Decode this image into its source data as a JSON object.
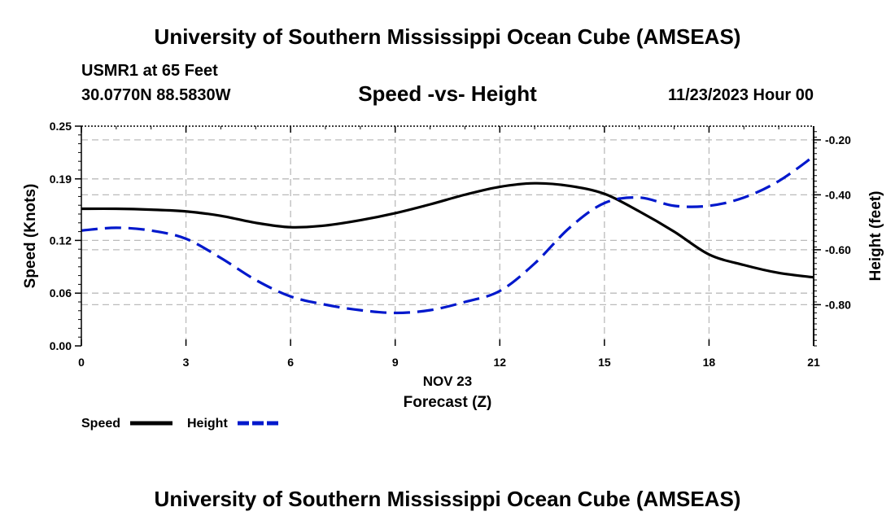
{
  "header": {
    "title": "University of Southern Mississippi Ocean Cube (AMSEAS)",
    "station": "USMR1 at 65 Feet",
    "coords": "30.0770N  88.5830W",
    "datetime": "11/23/2023 Hour 00",
    "footer_title": "University of Southern Mississippi Ocean Cube (AMSEAS)"
  },
  "chart_data": {
    "type": "line",
    "title": "Speed -vs- Height",
    "date_label": "NOV 23",
    "xlabel": "Forecast (Z)",
    "ylabel": "Speed (Knots)",
    "y2label": "Height (feet)",
    "xlim": [
      0,
      21
    ],
    "ylim": [
      0,
      0.25
    ],
    "y2lim": [
      -0.95,
      -0.15
    ],
    "x_ticks": [
      0,
      3,
      6,
      9,
      12,
      15,
      18,
      21
    ],
    "x_tick_labels": [
      "0",
      "3",
      "6",
      "9",
      "12",
      "15",
      "18",
      "21"
    ],
    "y_ticks": [
      0,
      0.06,
      0.12,
      0.19,
      0.25
    ],
    "y_tick_labels": [
      "0.00",
      "0.06",
      "0.12",
      "0.19",
      "0.25"
    ],
    "y2_ticks": [
      -0.2,
      -0.4,
      -0.6,
      -0.8
    ],
    "y2_tick_labels": [
      "-0.20",
      "-0.40",
      "-0.60",
      "-0.80"
    ],
    "grid": true,
    "series": [
      {
        "name": "Speed",
        "axis": "left",
        "color": "#000000",
        "dash": "solid",
        "x": [
          0,
          1,
          2,
          3,
          4,
          5,
          6,
          7,
          8,
          9,
          10,
          11,
          12,
          13,
          14,
          15,
          16,
          17,
          18,
          19,
          20,
          21
        ],
        "values": [
          0.156,
          0.156,
          0.155,
          0.153,
          0.148,
          0.14,
          0.135,
          0.137,
          0.143,
          0.151,
          0.161,
          0.172,
          0.181,
          0.185,
          0.182,
          0.173,
          0.153,
          0.13,
          0.104,
          0.092,
          0.083,
          0.078
        ]
      },
      {
        "name": "Height",
        "axis": "right",
        "color": "#0018cc",
        "dash": "dashed",
        "x": [
          0,
          1,
          2,
          3,
          4,
          5,
          6,
          7,
          8,
          9,
          10,
          11,
          12,
          13,
          14,
          15,
          16,
          17,
          18,
          19,
          20,
          21
        ],
        "values": [
          -0.53,
          -0.52,
          -0.53,
          -0.56,
          -0.63,
          -0.71,
          -0.77,
          -0.8,
          -0.82,
          -0.83,
          -0.82,
          -0.79,
          -0.75,
          -0.65,
          -0.52,
          -0.43,
          -0.41,
          -0.44,
          -0.44,
          -0.41,
          -0.35,
          -0.26
        ]
      }
    ],
    "legend": [
      "Speed",
      "Height"
    ]
  }
}
